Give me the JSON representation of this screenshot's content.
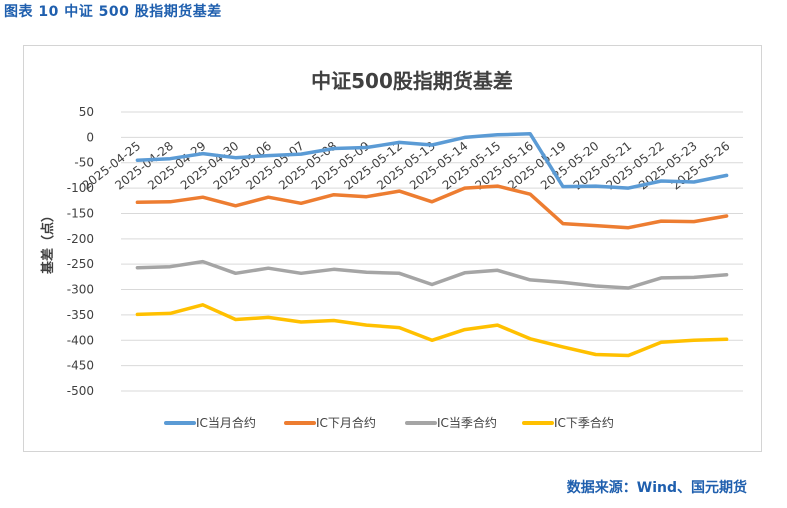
{
  "figure_title": "图表 10  中证 500 股指期货基差",
  "source": "数据来源：Wind、国元期货",
  "colors": {
    "frame_border": "#d4d4d4",
    "grid": "#d9d9d9",
    "accent": "#1f5fae"
  },
  "chart_data": {
    "type": "line",
    "title": "中证500股指期货基差",
    "ylabel": "基差（点）",
    "ylim": [
      -500,
      50
    ],
    "yticks": [
      50,
      0,
      -50,
      -100,
      -150,
      -200,
      -250,
      -300,
      -350,
      -400,
      -450,
      -500
    ],
    "grid": true,
    "legend_position": "bottom",
    "categories": [
      "2025-04-25",
      "2025-04-28",
      "2025-04-29",
      "2025-04-30",
      "2025-05-06",
      "2025-05-07",
      "2025-05-08",
      "2025-05-09",
      "2025-05-12",
      "2025-05-13",
      "2025-05-14",
      "2025-05-15",
      "2025-05-16",
      "2025-05-19",
      "2025-05-20",
      "2025-05-21",
      "2025-05-22",
      "2025-05-23",
      "2025-05-26"
    ],
    "series": [
      {
        "name": "IC当月合约",
        "color": "#5b9bd5",
        "values": [
          -45,
          -42,
          -32,
          -40,
          -36,
          -33,
          -22,
          -20,
          -10,
          -15,
          0,
          5,
          7,
          -97,
          -96,
          -100,
          -86,
          -88,
          -75
        ]
      },
      {
        "name": "IC下月合约",
        "color": "#ed7d31",
        "values": [
          -128,
          -127,
          -118,
          -135,
          -118,
          -130,
          -113,
          -117,
          -106,
          -127,
          -100,
          -96,
          -112,
          -170,
          -174,
          -178,
          -165,
          -166,
          -155
        ]
      },
      {
        "name": "IC当季合约",
        "color": "#a5a5a5",
        "values": [
          -257,
          -255,
          -245,
          -268,
          -258,
          -268,
          -260,
          -266,
          -268,
          -290,
          -267,
          -262,
          -281,
          -286,
          -293,
          -297,
          -277,
          -276,
          -271
        ]
      },
      {
        "name": "IC下季合约",
        "color": "#ffc000",
        "values": [
          -349,
          -347,
          -330,
          -359,
          -355,
          -364,
          -361,
          -370,
          -375,
          -400,
          -379,
          -370,
          -397,
          -413,
          -428,
          -430,
          -404,
          -400,
          -398
        ]
      }
    ]
  }
}
